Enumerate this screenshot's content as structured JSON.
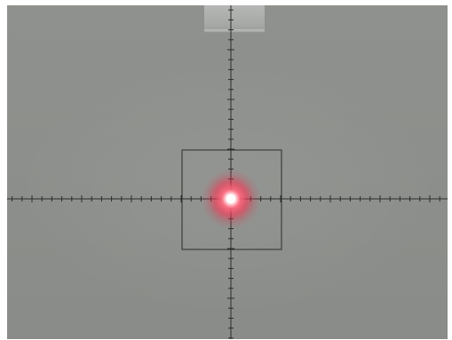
{
  "image": {
    "subject": "laser-spot-on-crosshair-target",
    "colors": {
      "background": "#8d8f8c",
      "reticle": "#2b2d2b",
      "laser_core": "#ffffff",
      "laser_glow": "#ff3a55",
      "tape": "#b3b6b2"
    }
  }
}
